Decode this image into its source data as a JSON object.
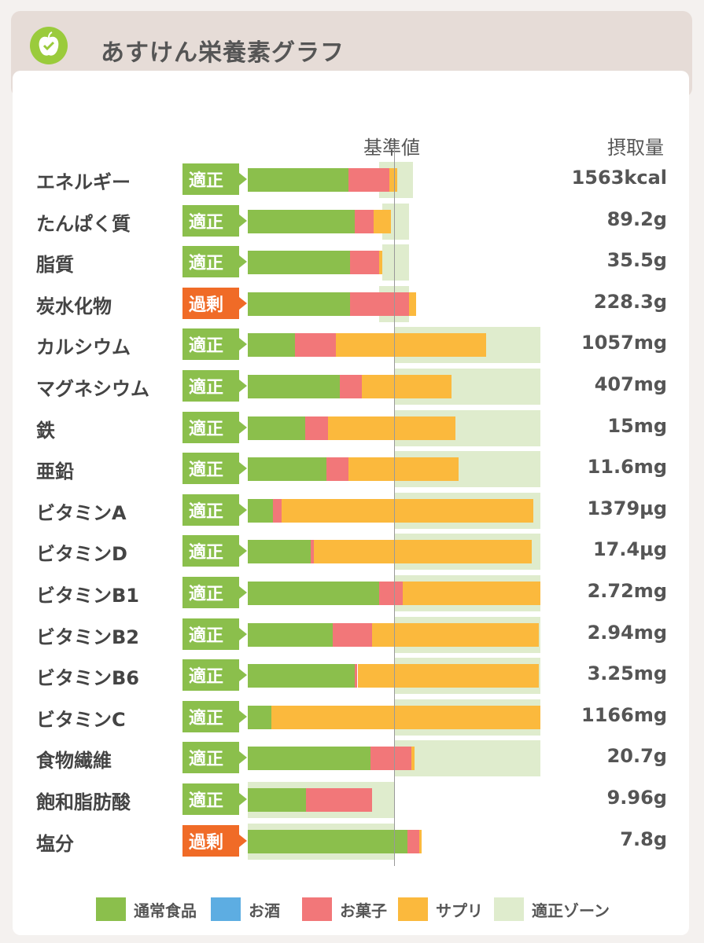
{
  "header": {
    "title": "あすけん栄養素グラフ",
    "logo_icon": "apple-scale-icon"
  },
  "chart_data": {
    "type": "bar",
    "stacked": true,
    "orientation": "horizontal",
    "reference_label": "基準値",
    "value_column_label": "摂取量",
    "colors": {
      "通常食品": "#8bbf4c",
      "お酒": "#5dade2",
      "お菓子": "#f27779",
      "サプリ": "#fbb93d",
      "適正ゾーン": "#dfeccd"
    },
    "status_colors": {
      "適正": "#8bbf4c",
      "過剰": "#f06b27"
    },
    "legend": [
      "通常食品",
      "お酒",
      "お菓子",
      "サプリ",
      "適正ゾーン"
    ],
    "note": "values are fractions of the reference value (基準値 = 1.0)",
    "rows": [
      {
        "name": "エネルギー",
        "status": "適正",
        "status_key": "ok",
        "amount": "1563kcal",
        "normal": 0.69,
        "alcohol": 0,
        "snack": 0.28,
        "supplement": 0.05,
        "zone": [
          0.9,
          1.13
        ]
      },
      {
        "name": "たんぱく質",
        "status": "適正",
        "status_key": "ok",
        "amount": "89.2g",
        "normal": 0.73,
        "alcohol": 0,
        "snack": 0.13,
        "supplement": 0.12,
        "zone": [
          0.92,
          1.1
        ]
      },
      {
        "name": "脂質",
        "status": "適正",
        "status_key": "ok",
        "amount": "35.5g",
        "normal": 0.7,
        "alcohol": 0,
        "snack": 0.2,
        "supplement": 0.02,
        "zone": [
          0.92,
          1.1
        ]
      },
      {
        "name": "炭水化物",
        "status": "過剰",
        "status_key": "over",
        "amount": "228.3g",
        "normal": 0.7,
        "alcohol": 0,
        "snack": 0.4,
        "supplement": 0.05,
        "zone": [
          0.9,
          1.1
        ]
      },
      {
        "name": "カルシウム",
        "status": "適正",
        "status_key": "ok",
        "amount": "1057mg",
        "normal": 0.32,
        "alcohol": 0,
        "snack": 0.28,
        "supplement": 1.03,
        "zone": [
          1.0,
          2.0
        ]
      },
      {
        "name": "マグネシウム",
        "status": "適正",
        "status_key": "ok",
        "amount": "407mg",
        "normal": 0.63,
        "alcohol": 0,
        "snack": 0.15,
        "supplement": 0.61,
        "zone": [
          1.0,
          2.0
        ]
      },
      {
        "name": "鉄",
        "status": "適正",
        "status_key": "ok",
        "amount": "15mg",
        "normal": 0.39,
        "alcohol": 0,
        "snack": 0.16,
        "supplement": 0.87,
        "zone": [
          1.0,
          2.0
        ]
      },
      {
        "name": "亜鉛",
        "status": "適正",
        "status_key": "ok",
        "amount": "11.6mg",
        "normal": 0.54,
        "alcohol": 0,
        "snack": 0.15,
        "supplement": 0.75,
        "zone": [
          1.0,
          2.0
        ]
      },
      {
        "name": "ビタミンA",
        "status": "適正",
        "status_key": "ok",
        "amount": "1379µg",
        "normal": 0.17,
        "alcohol": 0,
        "snack": 0.06,
        "supplement": 1.72,
        "zone": [
          1.0,
          2.0
        ]
      },
      {
        "name": "ビタミンD",
        "status": "適正",
        "status_key": "ok",
        "amount": "17.4µg",
        "normal": 0.43,
        "alcohol": 0,
        "snack": 0.02,
        "supplement": 1.49,
        "zone": [
          1.0,
          2.0
        ]
      },
      {
        "name": "ビタミンB1",
        "status": "適正",
        "status_key": "ok",
        "amount": "2.72mg",
        "normal": 0.9,
        "alcohol": 0,
        "snack": 0.16,
        "supplement": 0.94,
        "zone": [
          1.0,
          2.0
        ]
      },
      {
        "name": "ビタミンB2",
        "status": "適正",
        "status_key": "ok",
        "amount": "2.94mg",
        "normal": 0.58,
        "alcohol": 0,
        "snack": 0.27,
        "supplement": 1.14,
        "zone": [
          1.0,
          2.0
        ]
      },
      {
        "name": "ビタミンB6",
        "status": "適正",
        "status_key": "ok",
        "amount": "3.25mg",
        "normal": 0.73,
        "alcohol": 0,
        "snack": 0.02,
        "supplement": 1.24,
        "zone": [
          1.0,
          2.0
        ]
      },
      {
        "name": "ビタミンC",
        "status": "適正",
        "status_key": "ok",
        "amount": "1166mg",
        "normal": 0.16,
        "alcohol": 0,
        "snack": 0,
        "supplement": 1.84,
        "zone": [
          1.0,
          2.0
        ]
      },
      {
        "name": "食物繊維",
        "status": "適正",
        "status_key": "ok",
        "amount": "20.7g",
        "normal": 0.84,
        "alcohol": 0,
        "snack": 0.28,
        "supplement": 0.02,
        "zone": [
          1.0,
          2.0
        ]
      },
      {
        "name": "飽和脂肪酸",
        "status": "適正",
        "status_key": "ok",
        "amount": "9.96g",
        "normal": 0.4,
        "alcohol": 0,
        "snack": 0.45,
        "supplement": 0,
        "zone": [
          0,
          1.0
        ]
      },
      {
        "name": "塩分",
        "status": "過剰",
        "status_key": "over",
        "amount": "7.8g",
        "normal": 1.09,
        "alcohol": 0,
        "snack": 0.08,
        "supplement": 0.02,
        "zone": [
          0,
          1.0
        ]
      }
    ]
  }
}
